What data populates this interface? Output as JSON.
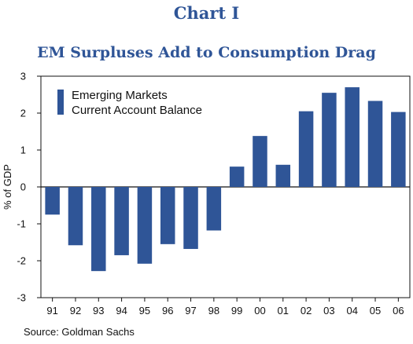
{
  "chart_label": "Chart I",
  "source": "Source: Goldman Sachs",
  "colors": {
    "bar": "#2f5597",
    "title": "#2f5597"
  },
  "chart_data": {
    "type": "bar",
    "title": "EM Surpluses Add to Consumption Drag",
    "xlabel": "",
    "ylabel": "% of GDP",
    "ylim": [
      -3,
      3
    ],
    "yticks": [
      -3,
      -2,
      -1,
      0,
      1,
      2,
      3
    ],
    "grid": false,
    "legend_position": "top-left",
    "categories": [
      "91",
      "92",
      "93",
      "94",
      "95",
      "96",
      "97",
      "98",
      "99",
      "00",
      "01",
      "02",
      "03",
      "04",
      "05",
      "06"
    ],
    "series": [
      {
        "name": "Emerging Markets Current Account Balance",
        "legend_lines": [
          "Emerging Markets",
          "Current Account Balance"
        ],
        "values": [
          -0.75,
          -1.58,
          -2.28,
          -1.85,
          -2.08,
          -1.55,
          -1.68,
          -1.18,
          0.55,
          1.38,
          0.6,
          2.05,
          2.55,
          2.7,
          2.33,
          2.03
        ]
      }
    ]
  }
}
